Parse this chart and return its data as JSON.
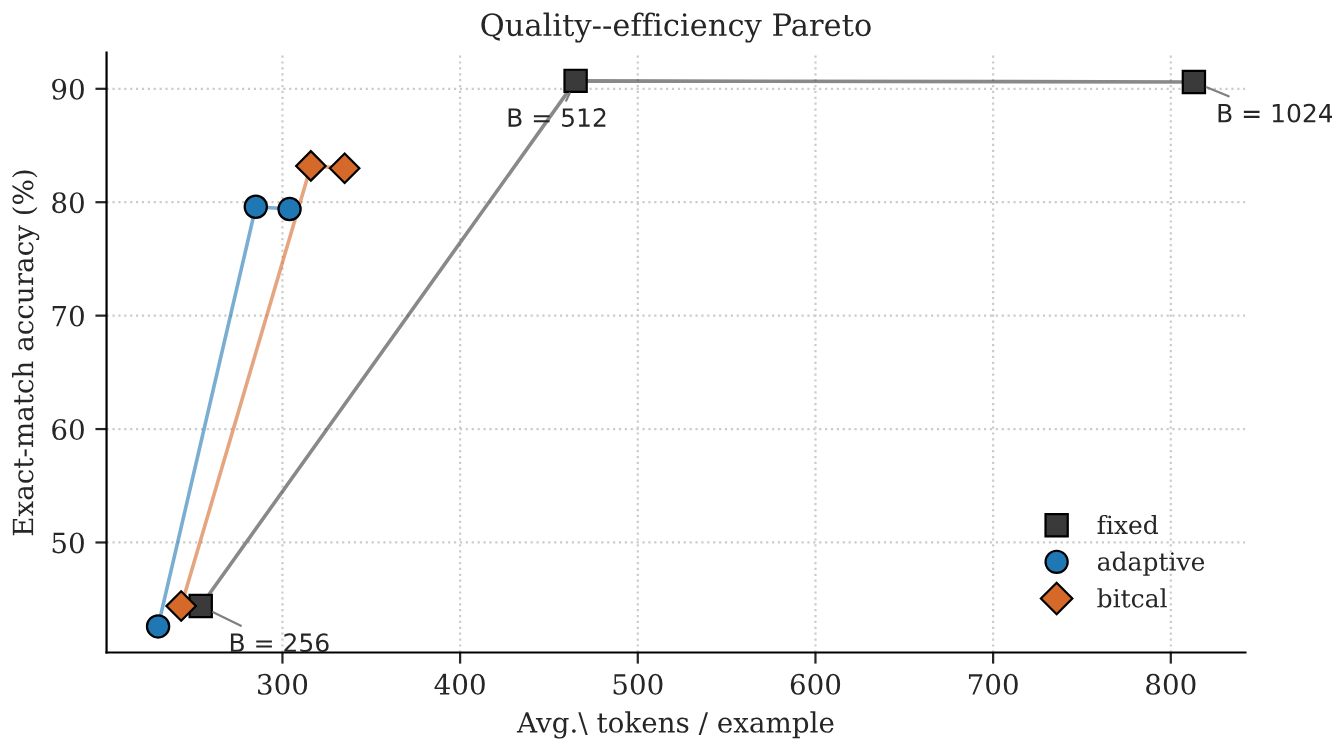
{
  "chart_data": {
    "type": "line",
    "title": "Quality--efficiency Pareto",
    "xlabel": "Avg.\\ tokens / example",
    "ylabel": "Exact-match accuracy (%)",
    "xlim": [
      201,
      842
    ],
    "xticks": [
      300,
      400,
      500,
      600,
      700,
      800
    ],
    "ylim": [
      40.3,
      93.2
    ],
    "yticks": [
      50,
      60,
      70,
      80,
      90
    ],
    "grid": true,
    "legend": "bottom right",
    "series": [
      {
        "name": "fixed",
        "color": "#3a3a3a",
        "marker": "square",
        "x": [
          254,
          465,
          813
        ],
        "values": [
          44.4,
          90.7,
          90.6
        ]
      },
      {
        "name": "adaptive",
        "color": "#1f77b4",
        "marker": "circle",
        "x": [
          230,
          285,
          304
        ],
        "values": [
          42.6,
          79.6,
          79.4
        ]
      },
      {
        "name": "bitcal",
        "color": "#d4692a",
        "marker": "diamond",
        "x": [
          243,
          316,
          335
        ],
        "values": [
          44.4,
          83.2,
          83.0
        ]
      }
    ],
    "annotations": [
      {
        "text": "B = 256",
        "x": 254,
        "y": 44.4
      },
      {
        "text": "B = 512",
        "x": 465,
        "y": 90.7
      },
      {
        "text": "B = 1024",
        "x": 813,
        "y": 90.6
      }
    ]
  }
}
